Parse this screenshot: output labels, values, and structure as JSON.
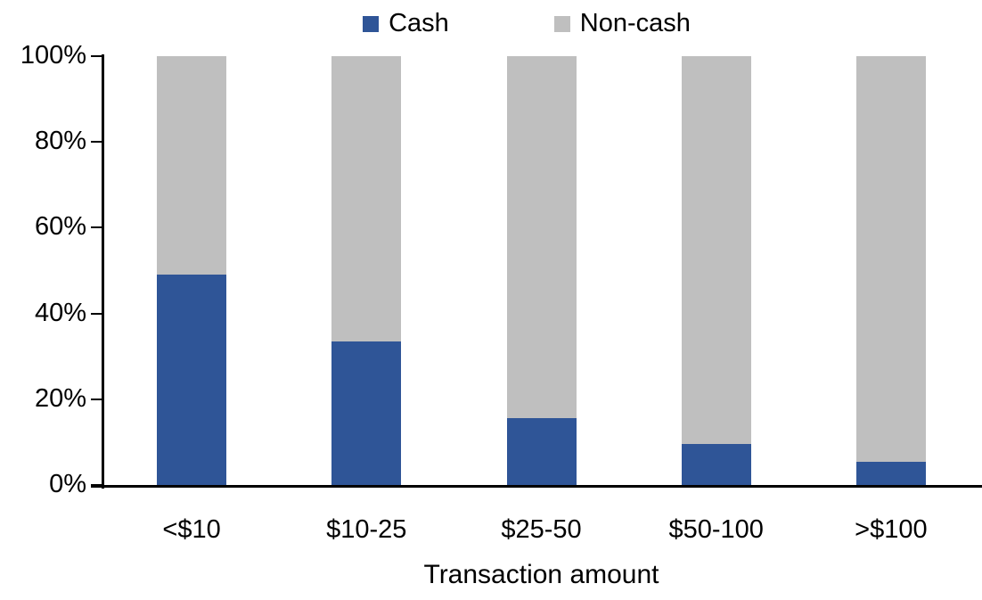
{
  "chart_data": {
    "type": "bar",
    "stacked": true,
    "percent_stacked": true,
    "title": "",
    "xlabel": "Transaction amount",
    "ylabel": "",
    "categories": [
      "<$10",
      "$10-25",
      "$25-50",
      "$50-100",
      ">$100"
    ],
    "series": [
      {
        "name": "Cash",
        "color": "#2F5597",
        "values": [
          49,
          33.5,
          15.5,
          9.5,
          5.5
        ]
      },
      {
        "name": "Non-cash",
        "color": "#BFBFBF",
        "values": [
          51,
          66.5,
          84.5,
          90.5,
          94.5
        ]
      }
    ],
    "ylim": [
      0,
      100
    ],
    "ytick_values": [
      0,
      20,
      40,
      60,
      80,
      100
    ],
    "ytick_labels": [
      "0%",
      "20%",
      "40%",
      "60%",
      "80%",
      "100%"
    ],
    "legend_position": "top",
    "grid": false,
    "axis_color": "#000000",
    "background_color": "#FFFFFF"
  }
}
